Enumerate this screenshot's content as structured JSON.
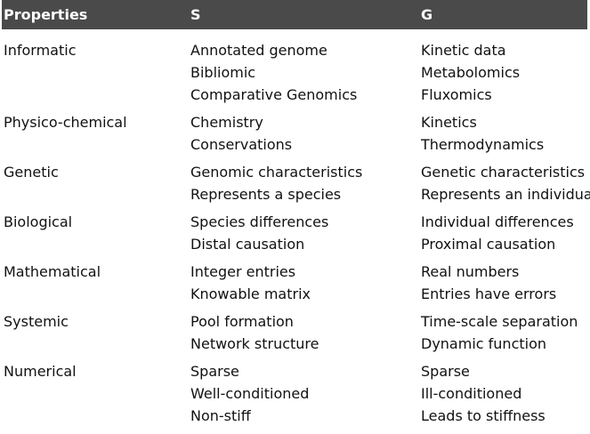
{
  "headers": [
    "Properties",
    "S",
    "G"
  ],
  "rows": [
    {
      "property": "Informatic",
      "s": [
        "Annotated genome",
        "Bibliomic",
        "Comparative Genomics"
      ],
      "g": [
        "Kinetic data",
        "Metabolomics",
        "Fluxomics"
      ]
    },
    {
      "property": "Physico-chemical",
      "s": [
        "Chemistry",
        "Conservations"
      ],
      "g": [
        "Kinetics",
        "Thermodynamics"
      ]
    },
    {
      "property": "Genetic",
      "s": [
        "Genomic characteristics",
        "Represents a species"
      ],
      "g": [
        "Genetic characteristics",
        "Represents an individual"
      ]
    },
    {
      "property": "Biological",
      "s": [
        "Species differences",
        "Distal causation"
      ],
      "g": [
        "Individual differences",
        "Proximal causation"
      ]
    },
    {
      "property": "Mathematical",
      "s": [
        "Integer entries",
        "Knowable matrix"
      ],
      "g": [
        "Real numbers",
        "Entries have errors"
      ]
    },
    {
      "property": "Systemic",
      "s": [
        "Pool formation",
        "Network structure"
      ],
      "g": [
        "Time-scale separation",
        "Dynamic function"
      ]
    },
    {
      "property": "Numerical",
      "s": [
        "Sparse",
        "Well-conditioned",
        "Non-stiff"
      ],
      "g": [
        "Sparse",
        "Ill-conditioned",
        "Leads to stiffness"
      ]
    }
  ]
}
